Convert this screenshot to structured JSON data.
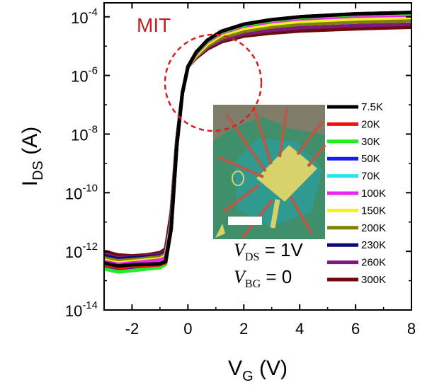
{
  "chart_data": {
    "type": "line",
    "y_scale": "log",
    "xlim": [
      -3,
      8
    ],
    "ylim": [
      1e-14,
      0.0003
    ],
    "x_ticks": [
      -2,
      0,
      2,
      4,
      6,
      8
    ],
    "y_ticks": [
      {
        "value": 1e-14,
        "base": "10",
        "exp": "-14"
      },
      {
        "value": 1e-12,
        "base": "10",
        "exp": "-12"
      },
      {
        "value": 1e-10,
        "base": "10",
        "exp": "-10"
      },
      {
        "value": 1e-08,
        "base": "10",
        "exp": "-8"
      },
      {
        "value": 1e-06,
        "base": "10",
        "exp": "-6"
      },
      {
        "value": 0.0001,
        "base": "10",
        "exp": "-4"
      }
    ],
    "xlabel": {
      "main": "V",
      "sub": "G",
      "unit": " (V)"
    },
    "ylabel": {
      "main": "I",
      "sub": "DS",
      "unit": " (A)"
    },
    "annotation": {
      "text": "MIT",
      "color": "#c0202a"
    },
    "conditions": [
      {
        "symbol": "V",
        "sub": "DS",
        "value": " = 1V"
      },
      {
        "symbol": "V",
        "sub": "BG",
        "value": " = 0"
      }
    ],
    "legend_position": "right",
    "inset": {
      "type": "device optical micrograph with scale bar"
    },
    "series": [
      {
        "name": "7.5K",
        "color": "#000000",
        "x": [
          -3,
          -2.5,
          -2,
          -1.5,
          -1,
          -0.8,
          -0.6,
          -0.4,
          -0.2,
          0,
          0.3,
          0.7,
          1.2,
          2,
          3,
          4,
          6,
          8
        ],
        "y": [
          4e-13,
          3.2e-13,
          3.5e-13,
          3.6e-13,
          3.8e-13,
          4.5e-13,
          6e-12,
          4e-09,
          2.5e-07,
          2e-06,
          6.3e-06,
          1.6e-05,
          3.2e-05,
          5.6e-05,
          8e-05,
          0.0001,
          0.000126,
          0.000141
        ]
      },
      {
        "name": "20K",
        "color": "#ee1111",
        "x": [
          -3,
          -2.5,
          -2,
          -1.5,
          -1,
          -0.8,
          -0.6,
          -0.4,
          -0.2,
          0,
          0.3,
          0.7,
          1.2,
          2,
          3,
          4,
          6,
          8
        ],
        "y": [
          3.5e-13,
          2.8e-13,
          3e-13,
          3.2e-13,
          3.5e-13,
          4.2e-13,
          6e-12,
          4e-09,
          2.5e-07,
          2e-06,
          6.3e-06,
          1.6e-05,
          3.2e-05,
          5.6e-05,
          8e-05,
          0.0001,
          0.000126,
          0.000141
        ]
      },
      {
        "name": "30K",
        "color": "#22ee22",
        "x": [
          -3,
          -2.5,
          -2,
          -1.5,
          -1,
          -0.8,
          -0.6,
          -0.4,
          -0.2,
          0,
          0.3,
          0.7,
          1.2,
          2,
          3,
          4,
          6,
          8
        ],
        "y": [
          2.5e-13,
          2e-13,
          2.2e-13,
          2.5e-13,
          2.8e-13,
          3.6e-13,
          6e-12,
          4e-09,
          2.5e-07,
          2e-06,
          6e-06,
          1.5e-05,
          3e-05,
          5.2e-05,
          7.5e-05,
          9.5e-05,
          0.00012,
          0.000135
        ]
      },
      {
        "name": "50K",
        "color": "#1a1aee",
        "x": [
          -3,
          -2.5,
          -2,
          -1.5,
          -1,
          -0.8,
          -0.6,
          -0.4,
          -0.2,
          0,
          0.3,
          0.7,
          1.2,
          2,
          3,
          4,
          6,
          8
        ],
        "y": [
          3e-13,
          2.4e-13,
          2.6e-13,
          2.8e-13,
          3e-13,
          3.8e-13,
          6e-12,
          4e-09,
          2.5e-07,
          2e-06,
          6.3e-06,
          1.6e-05,
          3.2e-05,
          5.6e-05,
          8e-05,
          0.0001,
          0.000126,
          0.000141
        ]
      },
      {
        "name": "70K",
        "color": "#22e8ee",
        "x": [
          -3,
          -2.5,
          -2,
          -1.5,
          -1,
          -0.8,
          -0.6,
          -0.4,
          -0.2,
          0,
          0.3,
          0.7,
          1.2,
          2,
          3,
          4,
          6,
          8
        ],
        "y": [
          3.2e-13,
          2.6e-13,
          2.8e-13,
          3e-13,
          3.3e-13,
          4e-13,
          6e-12,
          4e-09,
          2.5e-07,
          2e-06,
          6e-06,
          1.5e-05,
          3e-05,
          5.2e-05,
          7.5e-05,
          9.5e-05,
          0.00012,
          0.00013
        ]
      },
      {
        "name": "100K",
        "color": "#ee22ee",
        "x": [
          -3,
          -2.5,
          -2,
          -1.5,
          -1,
          -0.8,
          -0.6,
          -0.4,
          -0.2,
          0,
          0.3,
          0.7,
          1.2,
          2,
          3,
          4,
          6,
          8
        ],
        "y": [
          4.5e-13,
          3.6e-13,
          4e-13,
          4.5e-13,
          5e-13,
          6e-13,
          7e-12,
          4e-09,
          2.5e-07,
          2e-06,
          5.6e-06,
          1.4e-05,
          2.8e-05,
          4.8e-05,
          6.8e-05,
          8.5e-05,
          0.000105,
          0.000115
        ]
      },
      {
        "name": "150K",
        "color": "#f2f222",
        "x": [
          -3,
          -2.5,
          -2,
          -1.5,
          -1,
          -0.8,
          -0.6,
          -0.4,
          -0.2,
          0,
          0.3,
          0.7,
          1.2,
          2,
          3,
          4,
          6,
          8
        ],
        "y": [
          5e-13,
          4e-13,
          4.5e-13,
          5e-13,
          5.5e-13,
          7e-13,
          8e-12,
          4e-09,
          2.5e-07,
          2e-06,
          5e-06,
          1.2e-05,
          2.4e-05,
          4e-05,
          5.6e-05,
          7e-05,
          8.5e-05,
          9.5e-05
        ]
      },
      {
        "name": "200K",
        "color": "#808000",
        "x": [
          -3,
          -2.5,
          -2,
          -1.5,
          -1,
          -0.8,
          -0.6,
          -0.4,
          -0.2,
          0,
          0.3,
          0.7,
          1.2,
          2,
          3,
          4,
          6,
          8
        ],
        "y": [
          6e-13,
          4.8e-13,
          5.2e-13,
          5.8e-13,
          6.5e-13,
          8e-13,
          1e-11,
          4.5e-09,
          2.5e-07,
          2e-06,
          4.5e-06,
          1e-05,
          1.9e-05,
          3.2e-05,
          4.5e-05,
          5.6e-05,
          6.7e-05,
          7.5e-05
        ]
      },
      {
        "name": "230K",
        "color": "#0a0a7a",
        "x": [
          -3,
          -2.5,
          -2,
          -1.5,
          -1,
          -0.8,
          -0.6,
          -0.4,
          -0.2,
          0,
          0.3,
          0.7,
          1.2,
          2,
          3,
          4,
          6,
          8
        ],
        "y": [
          7e-13,
          5.5e-13,
          6e-13,
          6.5e-13,
          7e-13,
          9e-13,
          1.2e-11,
          5e-09,
          2.5e-07,
          2e-06,
          4.5e-06,
          1e-05,
          1.9e-05,
          3.2e-05,
          4.5e-05,
          5.6e-05,
          6.7e-05,
          7.5e-05
        ]
      },
      {
        "name": "260K",
        "color": "#7a1a7a",
        "x": [
          -3,
          -2.5,
          -2,
          -1.5,
          -1,
          -0.8,
          -0.6,
          -0.4,
          -0.2,
          0,
          0.3,
          0.7,
          1.2,
          2,
          3,
          4,
          6,
          8
        ],
        "y": [
          8e-13,
          6.2e-13,
          6.5e-13,
          7e-13,
          8e-13,
          1e-12,
          1.5e-11,
          5.5e-09,
          2.5e-07,
          2e-06,
          4.2e-06,
          9e-06,
          1.6e-05,
          2.6e-05,
          3.5e-05,
          4.2e-05,
          5e-05,
          5.6e-05
        ]
      },
      {
        "name": "300K",
        "color": "#6e0a0a",
        "x": [
          -3,
          -2.5,
          -2,
          -1.5,
          -1,
          -0.8,
          -0.6,
          -0.4,
          -0.2,
          0,
          0.3,
          0.7,
          1.2,
          2,
          3,
          4,
          6,
          8
        ],
        "y": [
          1e-12,
          7.5e-13,
          7e-13,
          7.5e-13,
          9e-13,
          1.2e-12,
          2e-11,
          6e-09,
          2.5e-07,
          2e-06,
          4e-06,
          8e-06,
          1.4e-05,
          2.2e-05,
          2.8e-05,
          3.3e-05,
          3.9e-05,
          4.4e-05
        ]
      }
    ]
  }
}
